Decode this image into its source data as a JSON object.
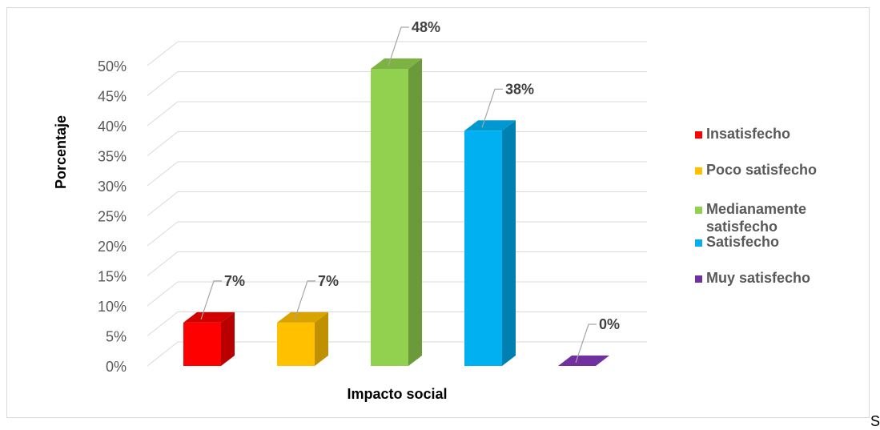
{
  "chart_data": {
    "type": "bar",
    "xlabel": "Impacto social",
    "ylabel": "Porcentaje",
    "ylim": [
      0,
      0.5
    ],
    "yticks": [
      "0%",
      "5%",
      "10%",
      "15%",
      "20%",
      "25%",
      "30%",
      "35%",
      "40%",
      "45%",
      "50%"
    ],
    "categories": [
      "Insatisfecho",
      "Poco satisfecho",
      "Medianamente satisfecho",
      "Satisfecho",
      "Muy satisfecho"
    ],
    "values": [
      0.07,
      0.07,
      0.48,
      0.38,
      0.0
    ],
    "data_labels": [
      "7%",
      "7%",
      "48%",
      "38%",
      "0%"
    ],
    "colors": [
      "#ff0000",
      "#ffc000",
      "#92d050",
      "#00b0f0",
      "#7030a0"
    ],
    "side_colors": [
      "#b80000",
      "#bf9000",
      "#6a9a3a",
      "#0080b0",
      "#4b1f6f"
    ],
    "top_colors": [
      "#d00000",
      "#d9a300",
      "#7cb342",
      "#0098d0",
      "#5a2585"
    ],
    "legend": {
      "position": "right",
      "entries": [
        "Insatisfecho",
        "Poco satisfecho",
        "Medianamente satisfecho",
        "Satisfecho",
        "Muy satisfecho"
      ]
    },
    "grid": true,
    "style": "3d-column"
  },
  "footer_text": "S"
}
